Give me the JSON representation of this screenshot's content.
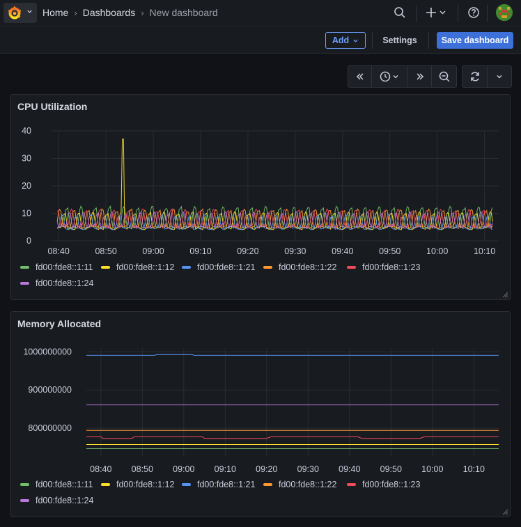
{
  "header": {
    "breadcrumbs": [
      "Home",
      "Dashboards",
      "New dashboard"
    ],
    "separator": "›"
  },
  "toolbar": {
    "add_label": "Add",
    "settings_label": "Settings",
    "save_label": "Save dashboard"
  },
  "colors": {
    "accent": "#3d71d9",
    "series": [
      "#73bf69",
      "#fade2a",
      "#5794f2",
      "#ff9830",
      "#f2495c",
      "#b877d9"
    ]
  },
  "panels": [
    {
      "title": "CPU Utilization",
      "legend": [
        "fd00:fde8::1:11",
        "fd00:fde8::1:12",
        "fd00:fde8::1:21",
        "fd00:fde8::1:22",
        "fd00:fde8::1:23",
        "fd00:fde8::1:24"
      ]
    },
    {
      "title": "Memory Allocated",
      "legend": [
        "fd00:fde8::1:11",
        "fd00:fde8::1:12",
        "fd00:fde8::1:21",
        "fd00:fde8::1:22",
        "fd00:fde8::1:23",
        "fd00:fde8::1:24"
      ]
    }
  ],
  "chart_data": [
    {
      "type": "line",
      "title": "CPU Utilization",
      "x_ticks": [
        "08:40",
        "08:50",
        "09:00",
        "09:10",
        "09:20",
        "09:30",
        "09:40",
        "09:50",
        "10:00",
        "10:10"
      ],
      "y_ticks": [
        "0",
        "10",
        "20",
        "30",
        "40"
      ],
      "ylim": [
        0,
        40
      ],
      "x_range_minutes": [
        -1.5,
        93
      ],
      "series": [
        {
          "name": "fd00:fde8::1:11",
          "baseline": 5,
          "peak": 12,
          "phase": 0.0
        },
        {
          "name": "fd00:fde8::1:12",
          "baseline": 4.5,
          "peak": 10,
          "phase": 0.5,
          "spike": {
            "x_minutes": 13.5,
            "value": 37
          }
        },
        {
          "name": "fd00:fde8::1:21",
          "baseline": 4.5,
          "peak": 9,
          "phase": 1.0
        },
        {
          "name": "fd00:fde8::1:22",
          "baseline": 5,
          "peak": 11,
          "phase": 1.5
        },
        {
          "name": "fd00:fde8::1:23",
          "baseline": 5.5,
          "peak": 11,
          "phase": 2.0
        },
        {
          "name": "fd00:fde8::1:24",
          "baseline": 5,
          "peak": 10,
          "phase": 2.5
        }
      ],
      "period_minutes": 3,
      "grid": true,
      "legend_position": "bottom"
    },
    {
      "type": "line",
      "title": "Memory Allocated",
      "x_ticks": [
        "08:40",
        "08:50",
        "09:00",
        "09:10",
        "09:20",
        "09:30",
        "09:40",
        "09:50",
        "10:00",
        "10:10"
      ],
      "y_ticks": [
        "800000000",
        "900000000",
        "1000000000"
      ],
      "ylim": [
        725000000,
        1010000000
      ],
      "x_range_minutes": [
        -3.5,
        96
      ],
      "series": [
        {
          "name": "fd00:fde8::1:11",
          "values": [
            [
              -3.5,
              746000000
            ],
            [
              96,
              746000000
            ]
          ]
        },
        {
          "name": "fd00:fde8::1:12",
          "values": [
            [
              -3.5,
              757000000
            ],
            [
              96,
              757000000
            ]
          ]
        },
        {
          "name": "fd00:fde8::1:21",
          "values": [
            [
              -3.5,
              991000000
            ],
            [
              13,
              991000000
            ],
            [
              13.5,
              993000000
            ],
            [
              22,
              993000000
            ],
            [
              22.5,
              991000000
            ],
            [
              96,
              991000000
            ]
          ]
        },
        {
          "name": "fd00:fde8::1:22",
          "values": [
            [
              -3.5,
              794000000
            ],
            [
              96,
              794000000
            ]
          ]
        },
        {
          "name": "fd00:fde8::1:23",
          "values": [
            [
              -3.5,
              777000000
            ],
            [
              0,
              777000000
            ],
            [
              0.5,
              773000000
            ],
            [
              7.5,
              773000000
            ],
            [
              8,
              777000000
            ],
            [
              17,
              777000000
            ],
            [
              17.5,
              777000000
            ],
            [
              24.5,
              777000000
            ],
            [
              25,
              773000000
            ],
            [
              40,
              773000000
            ],
            [
              41,
              777000000
            ],
            [
              62,
              777000000
            ],
            [
              63,
              773000000
            ],
            [
              77,
              773000000
            ],
            [
              78,
              777000000
            ],
            [
              96,
              777000000
            ]
          ]
        },
        {
          "name": "fd00:fde8::1:24",
          "values": [
            [
              -3.5,
              861000000
            ],
            [
              96,
              861000000
            ]
          ]
        }
      ],
      "grid": true,
      "legend_position": "bottom"
    }
  ]
}
